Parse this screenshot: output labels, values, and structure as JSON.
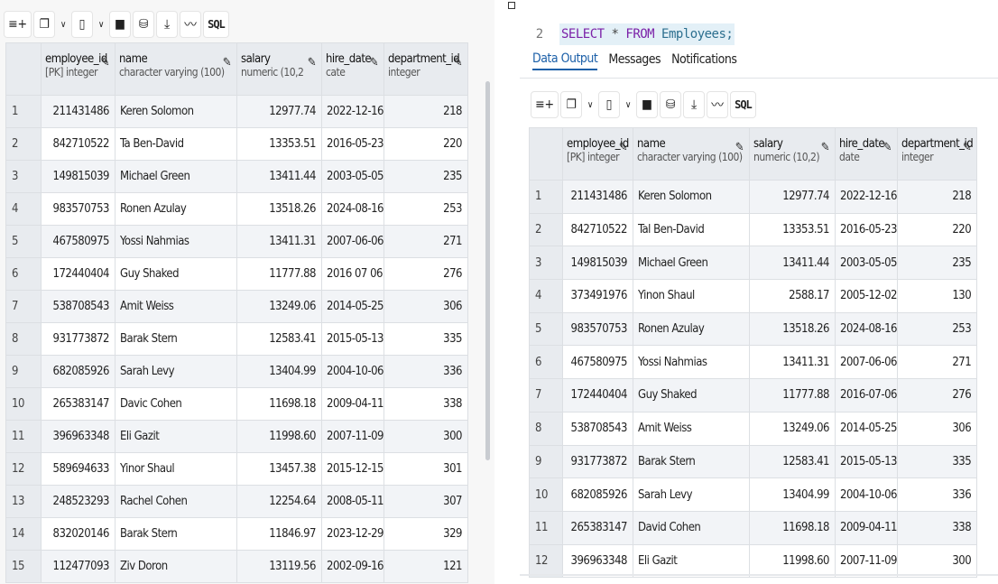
{
  "columns": [
    {
      "name": "employee_id",
      "type": "[PK] integer"
    },
    {
      "name": "name",
      "type": "character varying (100)"
    },
    {
      "name": "salary",
      "type": "numeric (10,2)"
    },
    {
      "name": "hire_date",
      "type": "date"
    },
    {
      "name": "department_id",
      "type": "integer"
    }
  ],
  "left_header": {
    "c0": {
      "name": "employee_id",
      "type": "[PK] integer"
    },
    "c1": {
      "name": "name",
      "type": "character varying (100)"
    },
    "c2": {
      "name": "salary",
      "type": "numeric (10,2"
    },
    "c3": {
      "name": "hire_date",
      "type": "cate"
    },
    "c4": {
      "name": "department_id",
      "type": "integer"
    }
  },
  "toolbar": {
    "add_row": "add-row-icon",
    "copy": "copy-icon",
    "paste": "paste-icon",
    "delete": "delete-icon",
    "save_data": "save-data-icon",
    "download": "download-icon",
    "graph": "graph-icon",
    "sql_label": "SQL"
  },
  "left_rows": [
    [
      "1",
      "211431486",
      "Keren Solomon",
      "12977.74",
      "2022-12-16",
      "218"
    ],
    [
      "2",
      "842710522",
      "Ta Ben-David",
      "13353.51",
      "2016-05-23",
      "220"
    ],
    [
      "3",
      "149815039",
      "Michael Green",
      "13411.44",
      "2003-05-05",
      "235"
    ],
    [
      "4",
      "983570753",
      "Ronen Azulay",
      "13518.26",
      "2024-08-16",
      "253"
    ],
    [
      "5",
      "467580975",
      "Yossi Nahmias",
      "13411.31",
      "2007-06-06",
      "271"
    ],
    [
      "6",
      "172440404",
      "Guy Shaked",
      "11777.88",
      "2016 07 06",
      "276"
    ],
    [
      "7",
      "538708543",
      "Amit Weiss",
      "13249.06",
      "2014-05-25",
      "306"
    ],
    [
      "8",
      "931773872",
      "Barak Stern",
      "12583.41",
      "2015-05-13",
      "335"
    ],
    [
      "9",
      "682085926",
      "Sarah Levy",
      "13404.99",
      "2004-10-06",
      "336"
    ],
    [
      "10",
      "265383147",
      "Davic Cohen",
      "11698.18",
      "2009-04-11",
      "338"
    ],
    [
      "11",
      "396963348",
      "Eli Gazit",
      "11998.60",
      "2007-11-09",
      "300"
    ],
    [
      "12",
      "589694633",
      "Yinor Shaul",
      "13457.38",
      "2015-12-15",
      "301"
    ],
    [
      "13",
      "248523293",
      "Rachel Cohen",
      "12254.64",
      "2008-05-11",
      "307"
    ],
    [
      "14",
      "832020146",
      "Barak Stern",
      "11846.97",
      "2023-12-29",
      "329"
    ],
    [
      "15",
      "112477093",
      "Ziv Doron",
      "13119.56",
      "2002-09-16",
      "121"
    ]
  ],
  "editor": {
    "line_number": "2",
    "kw_select": "SELECT",
    "star": "*",
    "kw_from": "FROM",
    "table": "Employees;"
  },
  "tabs": [
    "Data Output",
    "Messages",
    "Notifications"
  ],
  "right_rows": [
    [
      "1",
      "211431486",
      "Keren Solomon",
      "12977.74",
      "2022-12-16",
      "218"
    ],
    [
      "2",
      "842710522",
      "Tal Ben-David",
      "13353.51",
      "2016-05-23",
      "220"
    ],
    [
      "3",
      "149815039",
      "Michael Green",
      "13411.44",
      "2003-05-05",
      "235"
    ],
    [
      "4",
      "373491976",
      "Yinon Shaul",
      "2588.17",
      "2005-12-02",
      "130"
    ],
    [
      "5",
      "983570753",
      "Ronen Azulay",
      "13518.26",
      "2024-08-16",
      "253"
    ],
    [
      "6",
      "467580975",
      "Yossi Nahmias",
      "13411.31",
      "2007-06-06",
      "271"
    ],
    [
      "7",
      "172440404",
      "Guy Shaked",
      "11777.88",
      "2016-07-06",
      "276"
    ],
    [
      "8",
      "538708543",
      "Amit Weiss",
      "13249.06",
      "2014-05-25",
      "306"
    ],
    [
      "9",
      "931773872",
      "Barak Stern",
      "12583.41",
      "2015-05-13",
      "335"
    ],
    [
      "10",
      "682085926",
      "Sarah Levy",
      "13404.99",
      "2004-10-06",
      "336"
    ],
    [
      "11",
      "265383147",
      "David Cohen",
      "11698.18",
      "2009-04-11",
      "338"
    ],
    [
      "12",
      "396963348",
      "Eli Gazit",
      "11998.60",
      "2007-11-09",
      "300"
    ]
  ]
}
